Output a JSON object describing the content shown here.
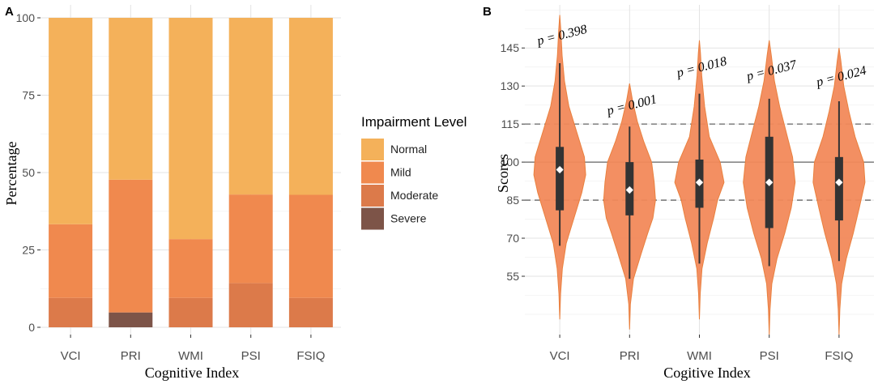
{
  "colors": {
    "normal": "#F4B15A",
    "mild": "#F0894E",
    "moderate": "#DC7A4A",
    "severe": "#7D5448",
    "violin": "#F2895A",
    "violin_edge": "#E9803E",
    "grid_major": "#e3e3e3",
    "grid_minor": "#f2f2f2",
    "box": "#333333",
    "mean_marker": "#ffffff",
    "ref_line": "#666666"
  },
  "chart_data": [
    {
      "panel": "A",
      "type": "bar",
      "stacked": true,
      "title": "",
      "xlabel": "Cognitive Index",
      "ylabel": "Percentage",
      "ylim": [
        0,
        100
      ],
      "yticks": [
        0,
        25,
        50,
        75,
        100
      ],
      "categories": [
        "VCI",
        "PRI",
        "WMI",
        "PSI",
        "FSIQ"
      ],
      "series": [
        {
          "name": "Severe",
          "color_key": "severe",
          "values": [
            0,
            4.8,
            0,
            0,
            0
          ]
        },
        {
          "name": "Moderate",
          "color_key": "moderate",
          "values": [
            9.5,
            0,
            9.5,
            14.3,
            9.5
          ]
        },
        {
          "name": "Mild",
          "color_key": "mild",
          "values": [
            23.8,
            42.9,
            19.0,
            28.6,
            33.3
          ]
        },
        {
          "name": "Normal",
          "color_key": "normal",
          "values": [
            66.7,
            52.3,
            71.5,
            57.1,
            57.2
          ]
        }
      ],
      "legend": {
        "title": "Impairment Level",
        "placement": "right",
        "entries": [
          "Normal",
          "Mild",
          "Moderate",
          "Severe"
        ]
      }
    },
    {
      "panel": "B",
      "type": "violin",
      "title": "",
      "xlabel": "Cogitive Index",
      "ylabel": "Scores",
      "ylim": [
        32,
        162
      ],
      "yticks": [
        55,
        70,
        85,
        100,
        115,
        130,
        145
      ],
      "reference_lines": [
        {
          "y": 100,
          "style": "solid"
        },
        {
          "y": 115,
          "style": "dashed"
        },
        {
          "y": 85,
          "style": "dashed"
        }
      ],
      "categories": [
        "VCI",
        "PRI",
        "WMI",
        "PSI",
        "FSIQ"
      ],
      "groups": [
        {
          "name": "VCI",
          "min": 67,
          "q1": 81,
          "median": 95,
          "q3": 106,
          "max": 139,
          "mean": 97,
          "p_label": "p = 0.398",
          "density": [
            [
              38,
              0
            ],
            [
              48,
              0.03
            ],
            [
              58,
              0.1
            ],
            [
              68,
              0.25
            ],
            [
              78,
              0.55
            ],
            [
              88,
              0.85
            ],
            [
              95,
              1.0
            ],
            [
              102,
              0.95
            ],
            [
              112,
              0.65
            ],
            [
              122,
              0.35
            ],
            [
              132,
              0.18
            ],
            [
              142,
              0.09
            ],
            [
              152,
              0.04
            ],
            [
              158,
              0
            ]
          ]
        },
        {
          "name": "PRI",
          "min": 54,
          "q1": 79,
          "median": 88,
          "q3": 100,
          "max": 114,
          "mean": 89,
          "p_label": "p = 0.001",
          "density": [
            [
              34,
              0
            ],
            [
              44,
              0.03
            ],
            [
              54,
              0.15
            ],
            [
              64,
              0.45
            ],
            [
              72,
              0.7
            ],
            [
              78,
              0.9
            ],
            [
              85,
              1.0
            ],
            [
              92,
              0.95
            ],
            [
              100,
              0.85
            ],
            [
              108,
              0.55
            ],
            [
              116,
              0.3
            ],
            [
              124,
              0.12
            ],
            [
              131,
              0
            ]
          ]
        },
        {
          "name": "WMI",
          "min": 60,
          "q1": 82,
          "median": 88,
          "q3": 101,
          "max": 127,
          "mean": 92,
          "p_label": "p = 0.018",
          "density": [
            [
              38,
              0
            ],
            [
              48,
              0.03
            ],
            [
              58,
              0.1
            ],
            [
              68,
              0.3
            ],
            [
              78,
              0.55
            ],
            [
              85,
              0.7
            ],
            [
              92,
              0.95
            ],
            [
              100,
              0.8
            ],
            [
              110,
              0.38
            ],
            [
              122,
              0.2
            ],
            [
              134,
              0.09
            ],
            [
              143,
              0.04
            ],
            [
              148,
              0
            ]
          ]
        },
        {
          "name": "PSI",
          "min": 59,
          "q1": 74,
          "median": 90,
          "q3": 110,
          "max": 125,
          "mean": 92,
          "p_label": "p = 0.037",
          "density": [
            [
              32,
              0
            ],
            [
              42,
              0.03
            ],
            [
              52,
              0.1
            ],
            [
              62,
              0.3
            ],
            [
              72,
              0.6
            ],
            [
              82,
              0.85
            ],
            [
              92,
              1.0
            ],
            [
              102,
              0.9
            ],
            [
              112,
              0.65
            ],
            [
              122,
              0.4
            ],
            [
              132,
              0.2
            ],
            [
              142,
              0.08
            ],
            [
              148,
              0
            ]
          ]
        },
        {
          "name": "FSIQ",
          "min": 61,
          "q1": 77,
          "median": 92,
          "q3": 102,
          "max": 124,
          "mean": 92,
          "p_label": "p = 0.024",
          "density": [
            [
              32,
              0
            ],
            [
              42,
              0.03
            ],
            [
              52,
              0.1
            ],
            [
              62,
              0.28
            ],
            [
              72,
              0.55
            ],
            [
              82,
              0.78
            ],
            [
              92,
              1.0
            ],
            [
              100,
              0.95
            ],
            [
              110,
              0.62
            ],
            [
              120,
              0.38
            ],
            [
              130,
              0.18
            ],
            [
              140,
              0.07
            ],
            [
              145,
              0
            ]
          ]
        }
      ]
    }
  ],
  "panel_labels": [
    "A",
    "B"
  ]
}
